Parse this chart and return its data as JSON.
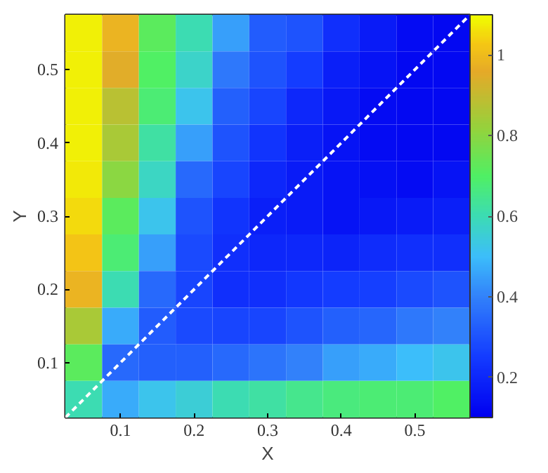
{
  "chart_data": {
    "type": "heatmap",
    "xlabel": "X",
    "ylabel": "Y",
    "x": [
      0.05,
      0.1,
      0.15,
      0.2,
      0.25,
      0.3,
      0.35,
      0.4,
      0.45,
      0.5,
      0.55
    ],
    "y": [
      0.55,
      0.5,
      0.45,
      0.4,
      0.35,
      0.3,
      0.25,
      0.2,
      0.15,
      0.1,
      0.05
    ],
    "cells": [
      [
        1.08,
        0.98,
        0.72,
        0.6,
        0.45,
        0.32,
        0.3,
        0.22,
        0.17,
        0.13,
        0.12
      ],
      [
        1.08,
        0.95,
        0.7,
        0.57,
        0.38,
        0.3,
        0.25,
        0.18,
        0.15,
        0.12,
        0.12
      ],
      [
        1.08,
        0.88,
        0.68,
        0.52,
        0.33,
        0.27,
        0.2,
        0.16,
        0.13,
        0.12,
        0.12
      ],
      [
        1.08,
        0.85,
        0.62,
        0.45,
        0.3,
        0.23,
        0.18,
        0.15,
        0.13,
        0.12,
        0.12
      ],
      [
        1.07,
        0.8,
        0.58,
        0.35,
        0.27,
        0.2,
        0.17,
        0.15,
        0.14,
        0.13,
        0.15
      ],
      [
        1.05,
        0.72,
        0.52,
        0.3,
        0.23,
        0.18,
        0.17,
        0.15,
        0.16,
        0.17,
        0.18
      ],
      [
        1.02,
        0.68,
        0.45,
        0.28,
        0.22,
        0.2,
        0.2,
        0.19,
        0.21,
        0.22,
        0.22
      ],
      [
        0.98,
        0.6,
        0.35,
        0.27,
        0.22,
        0.22,
        0.24,
        0.25,
        0.26,
        0.28,
        0.3
      ],
      [
        0.85,
        0.47,
        0.32,
        0.28,
        0.27,
        0.27,
        0.3,
        0.33,
        0.34,
        0.38,
        0.4
      ],
      [
        0.72,
        0.35,
        0.33,
        0.33,
        0.35,
        0.37,
        0.4,
        0.45,
        0.47,
        0.5,
        0.52
      ],
      [
        0.6,
        0.47,
        0.52,
        0.55,
        0.6,
        0.62,
        0.65,
        0.67,
        0.68,
        0.68,
        0.7
      ]
    ],
    "series": [
      {
        "type": "line",
        "x": [
          0.025,
          0.575
        ],
        "values": [
          0.025,
          0.575
        ],
        "color": "#ffffff",
        "line_style": "dashed"
      }
    ],
    "xlim": [
      0.025,
      0.575
    ],
    "ylim": [
      0.025,
      0.575
    ],
    "xticks": [
      0.1,
      0.2,
      0.3,
      0.4,
      0.5
    ],
    "yticks": [
      0.1,
      0.2,
      0.3,
      0.4,
      0.5
    ],
    "clim": [
      0.1,
      1.1
    ],
    "cticks": [
      0.2,
      0.4,
      0.6,
      0.8,
      1
    ],
    "grid": false
  }
}
